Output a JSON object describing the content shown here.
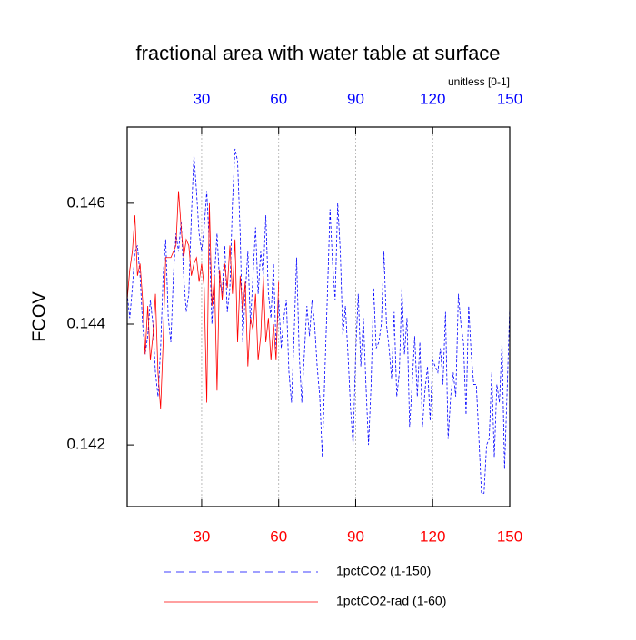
{
  "chart_data": {
    "type": "line",
    "title": "fractional area with water table at surface",
    "subtitle": "unitless [0-1]",
    "ylabel": "FCOV",
    "xlim": [
      1,
      150
    ],
    "ylim": [
      0.14098,
      0.14726
    ],
    "xticks": [
      30,
      60,
      90,
      120,
      150
    ],
    "yticks": [
      0.142,
      0.144,
      0.146
    ],
    "grid": "x",
    "top_axis_color": "#0000ff",
    "bottom_axis_color": "#ff0000",
    "series": [
      {
        "name": "1pctCO2 (1-150)",
        "color": "#0000ff",
        "dash": "3,2",
        "x": [
          1,
          2,
          3,
          4,
          5,
          6,
          7,
          8,
          9,
          10,
          11,
          12,
          13,
          14,
          15,
          16,
          17,
          18,
          19,
          20,
          21,
          22,
          23,
          24,
          25,
          26,
          27,
          28,
          29,
          30,
          31,
          32,
          33,
          34,
          35,
          36,
          37,
          38,
          39,
          40,
          41,
          42,
          43,
          44,
          45,
          46,
          47,
          48,
          49,
          50,
          51,
          52,
          53,
          54,
          55,
          56,
          57,
          58,
          59,
          60,
          61,
          62,
          63,
          64,
          65,
          66,
          67,
          68,
          69,
          70,
          71,
          72,
          73,
          74,
          75,
          76,
          77,
          78,
          79,
          80,
          81,
          82,
          83,
          84,
          85,
          86,
          87,
          88,
          89,
          90,
          91,
          92,
          93,
          94,
          95,
          96,
          97,
          98,
          99,
          100,
          101,
          102,
          103,
          104,
          105,
          106,
          107,
          108,
          109,
          110,
          111,
          112,
          113,
          114,
          115,
          116,
          117,
          118,
          119,
          120,
          121,
          122,
          123,
          124,
          125,
          126,
          127,
          128,
          129,
          130,
          131,
          132,
          133,
          134,
          135,
          136,
          137,
          138,
          139,
          140,
          141,
          142,
          143,
          144,
          145,
          146,
          147,
          148,
          149,
          150
        ],
        "values": [
          0.1445,
          0.1441,
          0.1446,
          0.1452,
          0.1453,
          0.1448,
          0.144,
          0.1435,
          0.1438,
          0.1444,
          0.144,
          0.1432,
          0.1428,
          0.1436,
          0.1448,
          0.1454,
          0.1441,
          0.1437,
          0.1448,
          0.1455,
          0.1452,
          0.1457,
          0.1448,
          0.1442,
          0.1445,
          0.1458,
          0.1468,
          0.1462,
          0.1455,
          0.1452,
          0.1456,
          0.1462,
          0.1453,
          0.144,
          0.1448,
          0.1455,
          0.1447,
          0.1445,
          0.1453,
          0.1442,
          0.1446,
          0.146,
          0.1469,
          0.1467,
          0.1455,
          0.1437,
          0.1445,
          0.1452,
          0.144,
          0.1448,
          0.1456,
          0.1445,
          0.1452,
          0.1448,
          0.1458,
          0.1445,
          0.1441,
          0.145,
          0.1436,
          0.1444,
          0.1436,
          0.1441,
          0.1444,
          0.1432,
          0.1427,
          0.1438,
          0.1451,
          0.1435,
          0.1427,
          0.1435,
          0.1443,
          0.1438,
          0.1444,
          0.144,
          0.1433,
          0.1428,
          0.1418,
          0.1432,
          0.1445,
          0.1459,
          0.145,
          0.1444,
          0.146,
          0.1452,
          0.1438,
          0.1443,
          0.1435,
          0.1426,
          0.142,
          0.1435,
          0.1445,
          0.1433,
          0.1441,
          0.143,
          0.142,
          0.143,
          0.1446,
          0.1436,
          0.1437,
          0.144,
          0.1452,
          0.144,
          0.1436,
          0.1431,
          0.1442,
          0.1428,
          0.1432,
          0.1446,
          0.1435,
          0.1441,
          0.1423,
          0.143,
          0.1438,
          0.1428,
          0.1437,
          0.1423,
          0.1429,
          0.1433,
          0.1424,
          0.1434,
          0.1433,
          0.1432,
          0.1436,
          0.143,
          0.1442,
          0.1421,
          0.1428,
          0.1432,
          0.1428,
          0.1445,
          0.144,
          0.1437,
          0.1425,
          0.1443,
          0.1435,
          0.143,
          0.143,
          0.1421,
          0.1412,
          0.1412,
          0.142,
          0.1421,
          0.1432,
          0.1418,
          0.143,
          0.1427,
          0.1437,
          0.1416,
          0.1429,
          0.1443
        ]
      },
      {
        "name": "1pctCO2-rad (1-60)",
        "color": "#ff0000",
        "dash": "none",
        "x": [
          1,
          2,
          3,
          4,
          5,
          6,
          7,
          8,
          9,
          10,
          11,
          12,
          13,
          14,
          15,
          16,
          17,
          18,
          19,
          20,
          21,
          22,
          23,
          24,
          25,
          26,
          27,
          28,
          29,
          30,
          31,
          32,
          33,
          34,
          35,
          36,
          37,
          38,
          39,
          40,
          41,
          42,
          43,
          44,
          45,
          46,
          47,
          48,
          49,
          50,
          51,
          52,
          53,
          54,
          55,
          56,
          57,
          58,
          59,
          60
        ],
        "values": [
          0.1444,
          0.1449,
          0.1452,
          0.1458,
          0.1448,
          0.145,
          0.1444,
          0.1435,
          0.1443,
          0.1434,
          0.1438,
          0.1445,
          0.1432,
          0.1426,
          0.1437,
          0.1451,
          0.1451,
          0.1451,
          0.1452,
          0.1453,
          0.1462,
          0.1456,
          0.1451,
          0.1454,
          0.1453,
          0.1448,
          0.145,
          0.1451,
          0.1447,
          0.145,
          0.1446,
          0.1427,
          0.146,
          0.1443,
          0.1448,
          0.1429,
          0.1449,
          0.1444,
          0.145,
          0.1446,
          0.1453,
          0.1445,
          0.1454,
          0.1437,
          0.1448,
          0.1442,
          0.1447,
          0.1433,
          0.1441,
          0.1439,
          0.1445,
          0.1434,
          0.1438,
          0.1448,
          0.1437,
          0.1441,
          0.1434,
          0.144,
          0.1434,
          0.1447
        ]
      }
    ]
  }
}
